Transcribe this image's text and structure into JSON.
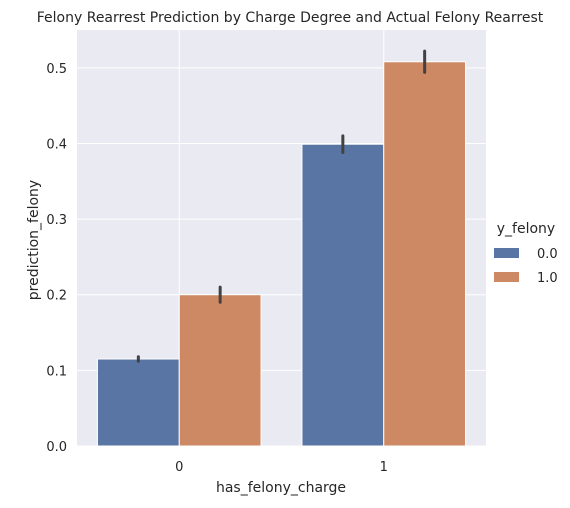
{
  "chart_data": {
    "type": "bar",
    "title": "Felony Rearrest Prediction by Charge Degree and Actual Felony Rearrest",
    "xlabel": "has_felony_charge",
    "ylabel": "prediction_felony",
    "categories": [
      "0",
      "1"
    ],
    "ylim": [
      0,
      0.55
    ],
    "yticks": [
      "0.0",
      "0.1",
      "0.2",
      "0.3",
      "0.4",
      "0.5"
    ],
    "grid": true,
    "legend": {
      "title": "y_felony",
      "placement": "right"
    },
    "series": [
      {
        "name": "0.0",
        "color": "#5875a4",
        "values": [
          0.115,
          0.399
        ],
        "error_low": [
          0.112,
          0.388
        ],
        "error_high": [
          0.118,
          0.41
        ]
      },
      {
        "name": "1.0",
        "color": "#cc8963",
        "values": [
          0.2,
          0.508
        ],
        "error_low": [
          0.19,
          0.494
        ],
        "error_high": [
          0.21,
          0.522
        ]
      }
    ]
  }
}
